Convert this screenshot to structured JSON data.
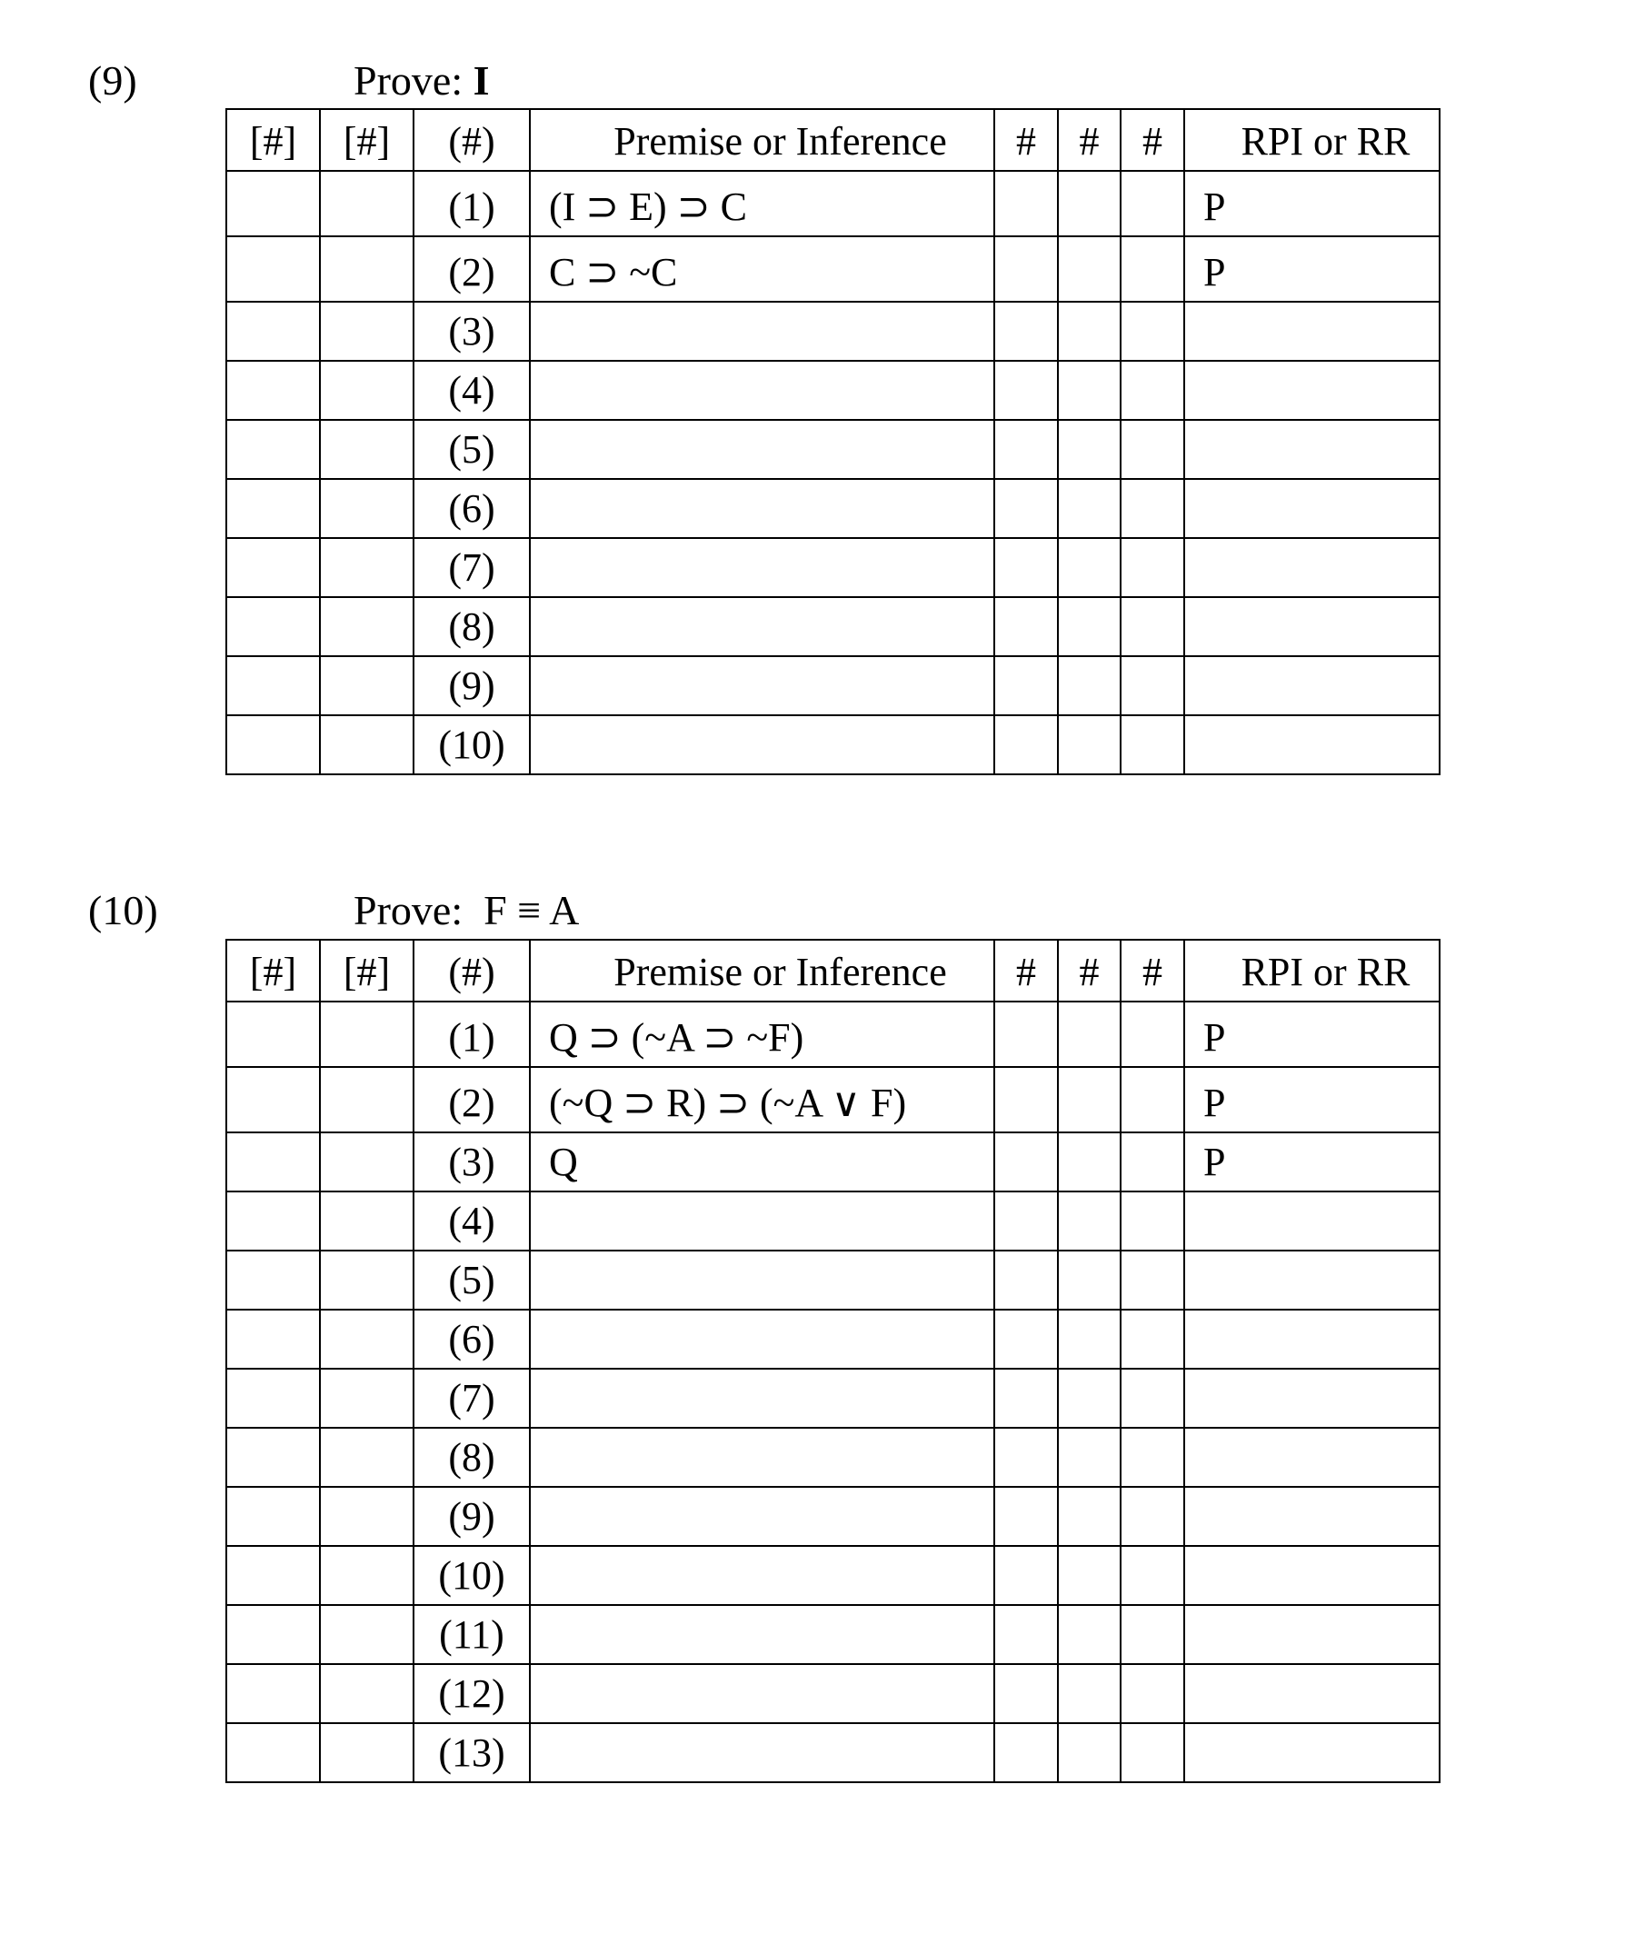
{
  "headers": {
    "c1": "[#]",
    "c2": "[#]",
    "c3": "(#)",
    "premise": "Premise or Inference",
    "h1": "#",
    "h2": "#",
    "h3": "#",
    "rr": "RPI or RR"
  },
  "problems": [
    {
      "number": "(9)",
      "prove_label": "Prove:",
      "prove_goal": "I",
      "rows": [
        {
          "n": "(1)",
          "formula": "(I  ⊃ E)  ⊃ C",
          "rr": "P"
        },
        {
          "n": "(2)",
          "formula": "C ⊃ ~C",
          "rr": "P"
        },
        {
          "n": "(3)",
          "formula": "",
          "rr": ""
        },
        {
          "n": "(4)",
          "formula": "",
          "rr": ""
        },
        {
          "n": "(5)",
          "formula": "",
          "rr": ""
        },
        {
          "n": "(6)",
          "formula": "",
          "rr": ""
        },
        {
          "n": "(7)",
          "formula": "",
          "rr": ""
        },
        {
          "n": "(8)",
          "formula": "",
          "rr": ""
        },
        {
          "n": "(9)",
          "formula": "",
          "rr": ""
        },
        {
          "n": "(10)",
          "formula": "",
          "rr": ""
        }
      ]
    },
    {
      "number": "(10)",
      "prove_label": "Prove:",
      "prove_goal": "F ≡ A",
      "rows": [
        {
          "n": "(1)",
          "formula": "Q ⊃ (~A ⊃ ~F)",
          "rr": "P"
        },
        {
          "n": "(2)",
          "formula": "(~Q ⊃ R) ⊃ (~A ∨ F)",
          "rr": "P"
        },
        {
          "n": "(3)",
          "formula": "Q",
          "rr": "P"
        },
        {
          "n": "(4)",
          "formula": "",
          "rr": ""
        },
        {
          "n": "(5)",
          "formula": "",
          "rr": ""
        },
        {
          "n": "(6)",
          "formula": "",
          "rr": ""
        },
        {
          "n": "(7)",
          "formula": "",
          "rr": ""
        },
        {
          "n": "(8)",
          "formula": "",
          "rr": ""
        },
        {
          "n": "(9)",
          "formula": "",
          "rr": ""
        },
        {
          "n": "(10)",
          "formula": "",
          "rr": ""
        },
        {
          "n": "(11)",
          "formula": "",
          "rr": ""
        },
        {
          "n": "(12)",
          "formula": "",
          "rr": ""
        },
        {
          "n": "(13)",
          "formula": "",
          "rr": ""
        }
      ]
    }
  ]
}
